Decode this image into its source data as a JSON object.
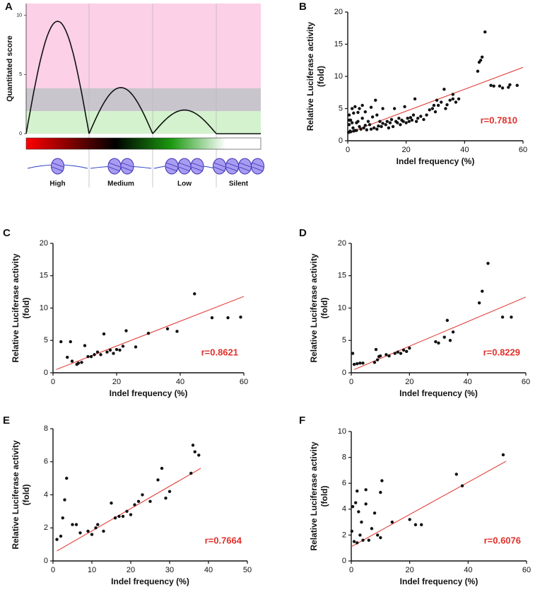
{
  "chart_data": [
    {
      "type": "hump",
      "label": "A",
      "ylabel": "Quantitated score",
      "categories": [
        "High",
        "Medium",
        "Low",
        "Silent"
      ],
      "values": [
        9.5,
        3.9,
        2.0,
        0
      ],
      "color": "#111111",
      "ylim": [
        0,
        11
      ],
      "yticks": [
        0,
        5,
        10
      ],
      "bands": [
        {
          "from": 3.85,
          "to": 11,
          "color": "#fcd0e6"
        },
        {
          "from": 1.9,
          "to": 3.85,
          "color": "#c9c5cd"
        },
        {
          "from": 0,
          "to": 1.9,
          "color": "#d3f2cd"
        }
      ]
    },
    {
      "type": "scatter",
      "label": "B",
      "xlabel": "Indel frequency (%)",
      "ylabel": [
        "Relative Luciferase activity",
        "(fold)"
      ],
      "x": [
        0.3,
        0.5,
        0.5,
        0.8,
        1,
        1,
        1.5,
        1.8,
        2,
        2,
        2.5,
        3,
        3,
        3.5,
        4,
        4,
        4.5,
        5,
        5,
        5.5,
        6,
        6.5,
        7,
        7.5,
        8,
        8.5,
        9,
        9.5,
        10,
        10,
        10.5,
        11,
        11.5,
        12,
        12,
        13,
        13.5,
        14,
        14.5,
        15,
        15.5,
        16,
        16.5,
        17,
        17.5,
        18,
        18.5,
        19,
        19.5,
        20,
        20.5,
        21,
        21.5,
        22,
        22.5,
        23,
        23.5,
        24,
        25,
        26,
        27,
        28,
        29,
        29.5,
        30,
        30.5,
        31,
        32,
        33,
        33.5,
        34,
        35,
        36,
        36,
        37,
        38,
        44.5,
        45,
        45.5,
        46,
        47,
        49,
        50,
        52,
        53,
        55,
        55.5,
        58,
        0.5,
        1.5,
        2.5,
        3.5,
        6,
        8
      ],
      "values": [
        1.3,
        2.5,
        4.0,
        1.5,
        3.2,
        1.4,
        5.0,
        2.0,
        4.3,
        1.5,
        5.3,
        2.8,
        1.6,
        4.4,
        2.2,
        5.0,
        1.8,
        3.5,
        5.5,
        2.0,
        4.5,
        1.7,
        3.0,
        2.5,
        1.8,
        3.7,
        2.0,
        6.3,
        1.8,
        4.0,
        2.3,
        3.0,
        2.2,
        5.0,
        2.7,
        2.5,
        3.0,
        2.0,
        2.8,
        3.3,
        2.2,
        5.0,
        3.0,
        2.8,
        3.5,
        2.5,
        3.2,
        3.0,
        5.3,
        2.8,
        3.5,
        3.0,
        3.6,
        3.2,
        4.0,
        6.5,
        3.0,
        3.5,
        3.8,
        3.3,
        4.0,
        4.8,
        5.0,
        5.5,
        4.5,
        6.3,
        5.5,
        6.0,
        8.0,
        5.0,
        5.6,
        6.3,
        6.5,
        7.2,
        6.0,
        6.5,
        10.8,
        12.2,
        12.5,
        13.0,
        16.9,
        8.6,
        8.5,
        8.5,
        8.2,
        8.3,
        8.7,
        8.6,
        3.2,
        2.8,
        1.6,
        3.0,
        2.4,
        5.2
      ],
      "color": "#111111",
      "xlim": [
        0,
        60
      ],
      "ylim": [
        0,
        20
      ],
      "xticks": [
        0,
        20,
        40,
        60
      ],
      "yticks": [
        0,
        5,
        10,
        15,
        20
      ],
      "fit": {
        "x": [
          0,
          60
        ],
        "values": [
          1.2,
          11.4
        ],
        "color": "#e0302a"
      },
      "annotation": "r=0.7810"
    },
    {
      "type": "scatter",
      "label": "C",
      "xlabel": "Indel frequency (%)",
      "ylabel": [
        "Relative Luciferase activity",
        "(fold)"
      ],
      "x": [
        2.5,
        4.5,
        5.5,
        6,
        7.5,
        8,
        9,
        10,
        11,
        12,
        13,
        14,
        15,
        16,
        17,
        18,
        19,
        20,
        21,
        22,
        23,
        26,
        30,
        36,
        39,
        44.5,
        50,
        55,
        59
      ],
      "values": [
        4.8,
        2.4,
        4.8,
        1.8,
        1.3,
        1.5,
        1.6,
        4.2,
        2.5,
        2.5,
        2.8,
        3.2,
        2.8,
        6.0,
        3.2,
        3.5,
        3.0,
        3.6,
        3.5,
        4.1,
        6.5,
        4.0,
        6.1,
        6.8,
        6.4,
        12.2,
        8.5,
        8.5,
        8.6
      ],
      "color": "#111111",
      "xlim": [
        0,
        60
      ],
      "ylim": [
        0,
        20
      ],
      "xticks": [
        0,
        20,
        40,
        60
      ],
      "yticks": [
        0,
        5,
        10,
        15,
        20
      ],
      "fit": {
        "x": [
          1,
          60
        ],
        "values": [
          0.5,
          11.8
        ],
        "color": "#e0302a"
      },
      "annotation": "r=0.8621"
    },
    {
      "type": "scatter",
      "label": "D",
      "xlabel": "Indel frequency (%)",
      "ylabel": [
        "Relative Luciferase activity",
        "(fold)"
      ],
      "x": [
        0.5,
        1,
        2,
        3,
        4,
        8,
        8.5,
        9,
        9.5,
        10,
        12,
        13,
        15,
        16,
        17,
        18,
        19,
        20,
        29,
        30,
        32,
        33,
        34,
        35,
        44,
        45,
        47,
        52,
        55
      ],
      "values": [
        3.0,
        1.3,
        1.4,
        1.5,
        1.5,
        1.6,
        3.6,
        2.0,
        2.5,
        2.6,
        2.8,
        2.6,
        3.0,
        3.2,
        3.0,
        3.5,
        3.3,
        3.8,
        4.8,
        4.6,
        5.5,
        8.1,
        5.0,
        6.3,
        10.8,
        12.6,
        16.9,
        8.6,
        8.6
      ],
      "color": "#111111",
      "xlim": [
        0,
        60
      ],
      "ylim": [
        0,
        20
      ],
      "xticks": [
        0,
        20,
        40,
        60
      ],
      "yticks": [
        0,
        5,
        10,
        15,
        20
      ],
      "fit": {
        "x": [
          1,
          60
        ],
        "values": [
          0.5,
          11.7
        ],
        "color": "#e0302a"
      },
      "annotation": "r=0.8229"
    },
    {
      "type": "scatter",
      "label": "E",
      "xlabel": "Indel frequency (%)",
      "ylabel": [
        "Relative Luciferase activity",
        "(fold)"
      ],
      "x": [
        1,
        2,
        2.5,
        3,
        3.5,
        5,
        6,
        7,
        9,
        10,
        11,
        11.5,
        13,
        15,
        16,
        17,
        18,
        19,
        20,
        21,
        22,
        23,
        25,
        27,
        28,
        29,
        30,
        35.5,
        36,
        37.5,
        36.5
      ],
      "values": [
        1.3,
        1.5,
        2.6,
        3.7,
        5.0,
        2.2,
        2.2,
        1.7,
        1.8,
        1.6,
        2.0,
        2.2,
        1.8,
        3.5,
        2.6,
        2.7,
        2.7,
        3.0,
        2.8,
        3.4,
        3.6,
        4.0,
        3.6,
        4.9,
        5.6,
        3.8,
        4.2,
        5.3,
        7.0,
        6.4,
        6.6
      ],
      "color": "#111111",
      "xlim": [
        0,
        50
      ],
      "ylim": [
        0,
        8
      ],
      "xticks": [
        0,
        10,
        20,
        30,
        40,
        50
      ],
      "yticks": [
        0,
        2,
        4,
        6,
        8
      ],
      "fit": {
        "x": [
          1,
          38
        ],
        "values": [
          0.6,
          5.6
        ],
        "color": "#e0302a"
      },
      "annotation": "r=0.7664"
    },
    {
      "type": "scatter",
      "label": "F",
      "xlabel": "Indel frequency (%)",
      "ylabel": [
        "Relative Luciferase activity",
        "(fold)"
      ],
      "x": [
        0.2,
        0.5,
        1,
        1.5,
        2,
        2,
        2.5,
        3,
        3.5,
        4,
        5,
        5,
        6,
        7,
        8,
        9,
        10,
        10,
        10.5,
        14,
        20,
        22,
        24,
        36,
        38,
        52
      ],
      "values": [
        2.3,
        4.2,
        1.5,
        4.5,
        1.4,
        5.4,
        3.8,
        2.0,
        3.0,
        1.6,
        4.4,
        5.5,
        1.6,
        2.5,
        3.7,
        2.0,
        1.8,
        5.3,
        6.2,
        3.0,
        3.2,
        2.8,
        2.8,
        6.7,
        5.8,
        8.2
      ],
      "color": "#111111",
      "xlim": [
        0,
        60
      ],
      "ylim": [
        0,
        10
      ],
      "xticks": [
        0,
        20,
        40,
        60
      ],
      "yticks": [
        0,
        2,
        4,
        6,
        8,
        10
      ],
      "fit": {
        "x": [
          0,
          53
        ],
        "values": [
          1.1,
          7.7
        ],
        "color": "#e0302a"
      },
      "annotation": "r=0.6076"
    }
  ]
}
